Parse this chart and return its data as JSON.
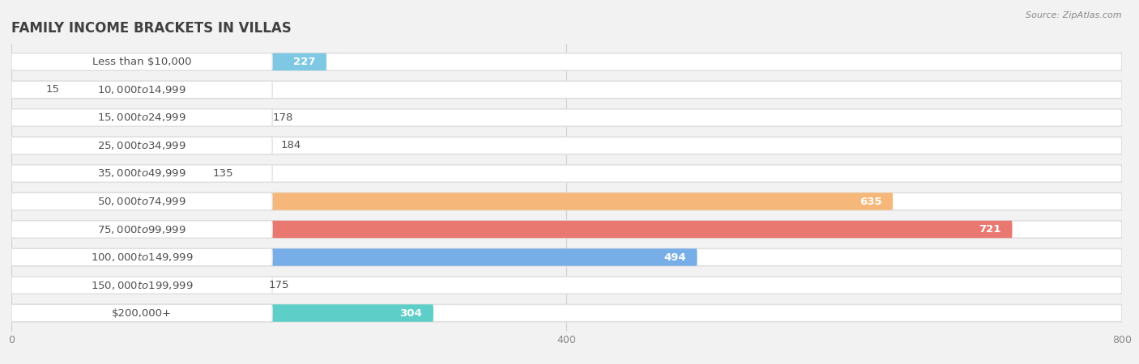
{
  "title": "FAMILY INCOME BRACKETS IN VILLAS",
  "source": "Source: ZipAtlas.com",
  "categories": [
    "Less than $10,000",
    "$10,000 to $14,999",
    "$15,000 to $24,999",
    "$25,000 to $34,999",
    "$35,000 to $49,999",
    "$50,000 to $74,999",
    "$75,000 to $99,999",
    "$100,000 to $149,999",
    "$150,000 to $199,999",
    "$200,000+"
  ],
  "values": [
    227,
    15,
    178,
    184,
    135,
    635,
    721,
    494,
    175,
    304
  ],
  "colors": [
    "#7ec8e3",
    "#cfa8d0",
    "#6ecfbf",
    "#a8a8e8",
    "#f9a8c9",
    "#f5b87a",
    "#e87870",
    "#78aee8",
    "#c8a8d8",
    "#5ecfc8"
  ],
  "xlim": [
    0,
    800
  ],
  "xticks": [
    0,
    400,
    800
  ],
  "background_color": "#f2f2f2",
  "bar_bg_color": "#ffffff",
  "title_color": "#404040",
  "label_color": "#505050",
  "value_label_fontsize": 9.5,
  "category_fontsize": 9.5,
  "title_fontsize": 12
}
